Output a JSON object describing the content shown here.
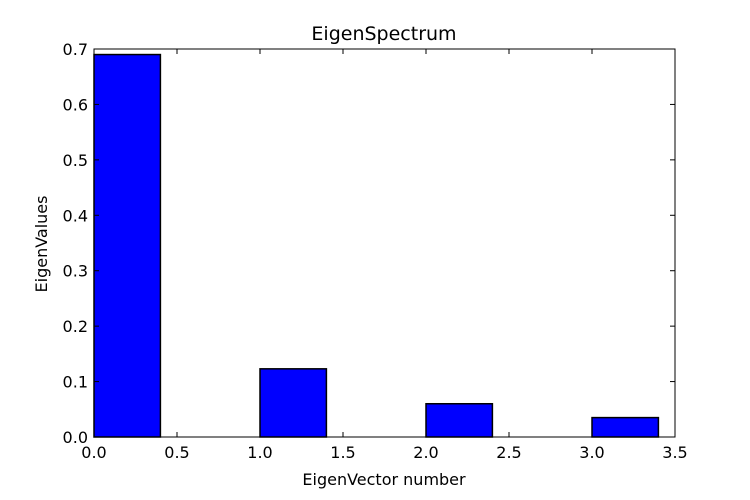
{
  "chart_data": {
    "type": "bar",
    "title": "EigenSpectrum",
    "xlabel": "EigenVector number",
    "ylabel": "EigenValues",
    "xlim": [
      0.0,
      3.5
    ],
    "ylim": [
      0.0,
      0.7
    ],
    "bar_width": 0.4,
    "bar_color": "#0000ff",
    "grid": false,
    "x_ticks": [
      0.0,
      0.5,
      1.0,
      1.5,
      2.0,
      2.5,
      3.0,
      3.5
    ],
    "x_tick_labels": [
      "0.0",
      "0.5",
      "1.0",
      "1.5",
      "2.0",
      "2.5",
      "3.0",
      "3.5"
    ],
    "y_ticks": [
      0.0,
      0.1,
      0.2,
      0.3,
      0.4,
      0.5,
      0.6,
      0.7
    ],
    "y_tick_labels": [
      "0.0",
      "0.1",
      "0.2",
      "0.3",
      "0.4",
      "0.5",
      "0.6",
      "0.7"
    ],
    "x": [
      0,
      1,
      2,
      3
    ],
    "values": [
      0.69,
      0.123,
      0.06,
      0.035
    ]
  }
}
